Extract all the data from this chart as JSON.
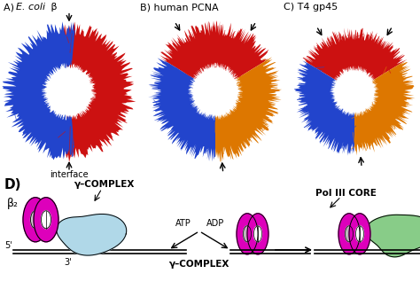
{
  "title_A_prefix": "A) ",
  "title_A_italic": "E. coli",
  "title_A_beta": " β",
  "title_B": "B) human PCNA",
  "title_C": "C) T4 gp45",
  "label_D": "D)",
  "label_beta2": "β₂",
  "label_gamma_complex_top": "γ–COMPLEX",
  "label_atp": "ATP",
  "label_adp": "ADP",
  "label_gamma_complex_bot": "γ–COMPLEX",
  "label_pol": "Pol III CORE",
  "label_5prime": "5'",
  "label_3prime": "3'",
  "label_interface": "interface",
  "bg_color": "#ffffff",
  "magenta": "#dd00bb",
  "light_blue_clamp": "#b0d8e8",
  "green_blob": "#88cc88",
  "red_protein": "#cc1111",
  "blue_protein": "#2244cc",
  "orange_protein": "#dd7700",
  "figure_width": 4.74,
  "figure_height": 3.26,
  "dpi": 100
}
